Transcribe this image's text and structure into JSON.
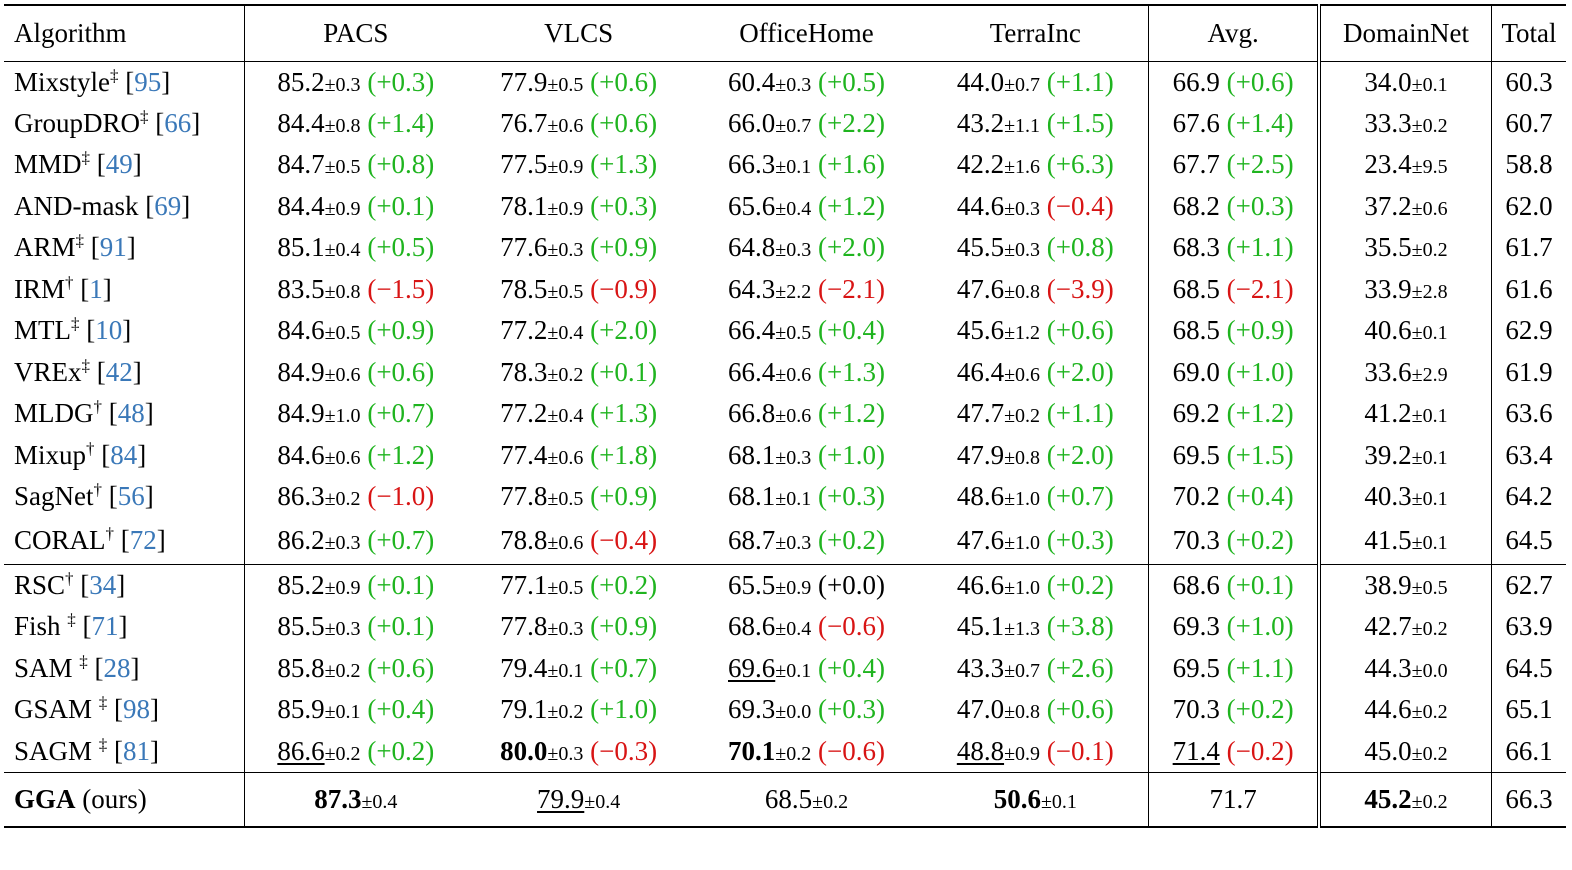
{
  "headers": [
    "Algorithm",
    "PACS",
    "VLCS",
    "OfficeHome",
    "TerraInc",
    "Avg.",
    "DomainNet",
    "Total"
  ],
  "groups": [
    [
      {
        "name": "Mixstyle",
        "mark": "‡",
        "ref": "95",
        "cells": [
          [
            "85.2",
            "±0.3",
            "+0.3",
            "pos"
          ],
          [
            "77.9",
            "±0.5",
            "+0.6",
            "pos"
          ],
          [
            "60.4",
            "±0.3",
            "+0.5",
            "pos"
          ],
          [
            "44.0",
            "±0.7",
            "+1.1",
            "pos"
          ]
        ],
        "avg": [
          "66.9",
          "+0.6",
          "pos"
        ],
        "dn": [
          "34.0",
          "±0.1"
        ],
        "total": "60.3"
      },
      {
        "name": "GroupDRO",
        "mark": "‡",
        "ref": "66",
        "cells": [
          [
            "84.4",
            "±0.8",
            "+1.4",
            "pos"
          ],
          [
            "76.7",
            "±0.6",
            "+0.6",
            "pos"
          ],
          [
            "66.0",
            "±0.7",
            "+2.2",
            "pos"
          ],
          [
            "43.2",
            "±1.1",
            "+1.5",
            "pos"
          ]
        ],
        "avg": [
          "67.6",
          "+1.4",
          "pos"
        ],
        "dn": [
          "33.3",
          "±0.2"
        ],
        "total": "60.7"
      },
      {
        "name": "MMD",
        "mark": "‡",
        "ref": "49",
        "cells": [
          [
            "84.7",
            "±0.5",
            "+0.8",
            "pos"
          ],
          [
            "77.5",
            "±0.9",
            "+1.3",
            "pos"
          ],
          [
            "66.3",
            "±0.1",
            "+1.6",
            "pos"
          ],
          [
            "42.2",
            "±1.6",
            "+6.3",
            "pos"
          ]
        ],
        "avg": [
          "67.7",
          "+2.5",
          "pos"
        ],
        "dn": [
          "23.4",
          "±9.5"
        ],
        "total": "58.8"
      },
      {
        "name": "AND-mask",
        "mark": "",
        "ref": "69",
        "cells": [
          [
            "84.4",
            "±0.9",
            "+0.1",
            "pos"
          ],
          [
            "78.1",
            "±0.9",
            "+0.3",
            "pos"
          ],
          [
            "65.6",
            "±0.4",
            "+1.2",
            "pos"
          ],
          [
            "44.6",
            "±0.3",
            "−0.4",
            "neg"
          ]
        ],
        "avg": [
          "68.2",
          "+0.3",
          "pos"
        ],
        "dn": [
          "37.2",
          "±0.6"
        ],
        "total": "62.0"
      },
      {
        "name": "ARM",
        "mark": "‡",
        "ref": "91",
        "cells": [
          [
            "85.1",
            "±0.4",
            "+0.5",
            "pos"
          ],
          [
            "77.6",
            "±0.3",
            "+0.9",
            "pos"
          ],
          [
            "64.8",
            "±0.3",
            "+2.0",
            "pos"
          ],
          [
            "45.5",
            "±0.3",
            "+0.8",
            "pos"
          ]
        ],
        "avg": [
          "68.3",
          "+1.1",
          "pos"
        ],
        "dn": [
          "35.5",
          "±0.2"
        ],
        "total": "61.7"
      },
      {
        "name": "IRM",
        "mark": "†",
        "ref": "1",
        "cells": [
          [
            "83.5",
            "±0.8",
            "−1.5",
            "neg"
          ],
          [
            "78.5",
            "±0.5",
            "−0.9",
            "neg"
          ],
          [
            "64.3",
            "±2.2",
            "−2.1",
            "neg"
          ],
          [
            "47.6",
            "±0.8",
            "−3.9",
            "neg"
          ]
        ],
        "avg": [
          "68.5",
          "−2.1",
          "neg"
        ],
        "dn": [
          "33.9",
          "±2.8"
        ],
        "total": "61.6"
      },
      {
        "name": "MTL",
        "mark": "‡",
        "ref": "10",
        "cells": [
          [
            "84.6",
            "±0.5",
            "+0.9",
            "pos"
          ],
          [
            "77.2",
            "±0.4",
            "+2.0",
            "pos"
          ],
          [
            "66.4",
            "±0.5",
            "+0.4",
            "pos"
          ],
          [
            "45.6",
            "±1.2",
            "+0.6",
            "pos"
          ]
        ],
        "avg": [
          "68.5",
          "+0.9",
          "pos"
        ],
        "dn": [
          "40.6",
          "±0.1"
        ],
        "total": "62.9"
      },
      {
        "name": "VREx",
        "mark": "‡",
        "ref": "42",
        "cells": [
          [
            "84.9",
            "±0.6",
            "+0.6",
            "pos"
          ],
          [
            "78.3",
            "±0.2",
            "+0.1",
            "pos"
          ],
          [
            "66.4",
            "±0.6",
            "+1.3",
            "pos"
          ],
          [
            "46.4",
            "±0.6",
            "+2.0",
            "pos"
          ]
        ],
        "avg": [
          "69.0",
          "+1.0",
          "pos"
        ],
        "dn": [
          "33.6",
          "±2.9"
        ],
        "total": "61.9"
      },
      {
        "name": "MLDG",
        "mark": "†",
        "ref": "48",
        "cells": [
          [
            "84.9",
            "±1.0",
            "+0.7",
            "pos"
          ],
          [
            "77.2",
            "±0.4",
            "+1.3",
            "pos"
          ],
          [
            "66.8",
            "±0.6",
            "+1.2",
            "pos"
          ],
          [
            "47.7",
            "±0.2",
            "+1.1",
            "pos"
          ]
        ],
        "avg": [
          "69.2",
          "+1.2",
          "pos"
        ],
        "dn": [
          "41.2",
          "±0.1"
        ],
        "total": "63.6"
      },
      {
        "name": "Mixup",
        "mark": "†",
        "ref": "84",
        "cells": [
          [
            "84.6",
            "±0.6",
            "+1.2",
            "pos"
          ],
          [
            "77.4",
            "±0.6",
            "+1.8",
            "pos"
          ],
          [
            "68.1",
            "±0.3",
            "+1.0",
            "pos"
          ],
          [
            "47.9",
            "±0.8",
            "+2.0",
            "pos"
          ]
        ],
        "avg": [
          "69.5",
          "+1.5",
          "pos"
        ],
        "dn": [
          "39.2",
          "±0.1"
        ],
        "total": "63.4"
      },
      {
        "name": "SagNet",
        "mark": "†",
        "ref": "56",
        "cells": [
          [
            "86.3",
            "±0.2",
            "−1.0",
            "neg"
          ],
          [
            "77.8",
            "±0.5",
            "+0.9",
            "pos"
          ],
          [
            "68.1",
            "±0.1",
            "+0.3",
            "pos"
          ],
          [
            "48.6",
            "±1.0",
            "+0.7",
            "pos"
          ]
        ],
        "avg": [
          "70.2",
          "+0.4",
          "pos"
        ],
        "dn": [
          "40.3",
          "±0.1"
        ],
        "total": "64.2"
      },
      {
        "name": "CORAL",
        "mark": "†",
        "ref": "72",
        "cells": [
          [
            "86.2",
            "±0.3",
            "+0.7",
            "pos"
          ],
          [
            "78.8",
            "±0.6",
            "−0.4",
            "neg"
          ],
          [
            "68.7",
            "±0.3",
            "+0.2",
            "pos"
          ],
          [
            "47.6",
            "±1.0",
            "+0.3",
            "pos"
          ]
        ],
        "avg": [
          "70.3",
          "+0.2",
          "pos"
        ],
        "dn": [
          "41.5",
          "±0.1"
        ],
        "total": "64.5"
      }
    ],
    [
      {
        "name": "RSC",
        "mark": "†",
        "ref": "34",
        "cells": [
          [
            "85.2",
            "±0.9",
            "+0.1",
            "pos"
          ],
          [
            "77.1",
            "±0.5",
            "+0.2",
            "pos"
          ],
          [
            "65.5",
            "±0.9",
            "+0.0",
            "neu"
          ],
          [
            "46.6",
            "±1.0",
            "+0.2",
            "pos"
          ]
        ],
        "avg": [
          "68.6",
          "+0.1",
          "pos"
        ],
        "dn": [
          "38.9",
          "±0.5"
        ],
        "total": "62.7"
      },
      {
        "name": "Fish ",
        "mark": "‡",
        "ref": "71",
        "cells": [
          [
            "85.5",
            "±0.3",
            "+0.1",
            "pos"
          ],
          [
            "77.8",
            "±0.3",
            "+0.9",
            "pos"
          ],
          [
            "68.6",
            "±0.4",
            "−0.6",
            "neg"
          ],
          [
            "45.1",
            "±1.3",
            "+3.8",
            "pos"
          ]
        ],
        "avg": [
          "69.3",
          "+1.0",
          "pos"
        ],
        "dn": [
          "42.7",
          "±0.2"
        ],
        "total": "63.9"
      },
      {
        "name": "SAM ",
        "mark": "‡",
        "ref": "28",
        "cells": [
          [
            "85.8",
            "±0.2",
            "+0.6",
            "pos"
          ],
          [
            "79.4",
            "±0.1",
            "+0.7",
            "pos"
          ],
          [
            "69.6",
            "±0.1",
            "+0.4",
            "pos",
            "ul"
          ],
          [
            "43.3",
            "±0.7",
            "+2.6",
            "pos"
          ]
        ],
        "avg": [
          "69.5",
          "+1.1",
          "pos"
        ],
        "dn": [
          "44.3",
          "±0.0"
        ],
        "total": "64.5"
      },
      {
        "name": "GSAM ",
        "mark": "‡",
        "ref": "98",
        "cells": [
          [
            "85.9",
            "±0.1",
            "+0.4",
            "pos"
          ],
          [
            "79.1",
            "±0.2",
            "+1.0",
            "pos"
          ],
          [
            "69.3",
            "±0.0",
            "+0.3",
            "pos"
          ],
          [
            "47.0",
            "±0.8",
            "+0.6",
            "pos"
          ]
        ],
        "avg": [
          "70.3",
          "+0.2",
          "pos"
        ],
        "dn": [
          "44.6",
          "±0.2"
        ],
        "total": "65.1"
      },
      {
        "name": "SAGM ",
        "mark": "‡",
        "ref": "81",
        "cells": [
          [
            "86.6",
            "±0.2",
            "+0.2",
            "pos",
            "ul"
          ],
          [
            "80.0",
            "±0.3",
            "−0.3",
            "neg",
            "bold"
          ],
          [
            "70.1",
            "±0.2",
            "−0.6",
            "neg",
            "bold"
          ],
          [
            "48.8",
            "±0.9",
            "−0.1",
            "neg",
            "ul"
          ]
        ],
        "avg": [
          "71.4",
          "−0.2",
          "neg",
          "ul"
        ],
        "dn": [
          "45.0",
          "±0.2"
        ],
        "total": "66.1"
      }
    ]
  ],
  "ours": {
    "name": "GGA",
    "suffix": "(ours)",
    "cells": [
      [
        "87.3",
        "±0.4",
        "bold"
      ],
      [
        "79.9",
        "±0.4",
        "ul"
      ],
      [
        "68.5",
        "±0.2",
        ""
      ],
      [
        "50.6",
        "±0.1",
        "bold"
      ]
    ],
    "avg": "71.7",
    "dn": [
      "45.2",
      "±0.2"
    ],
    "total": "66.3"
  }
}
